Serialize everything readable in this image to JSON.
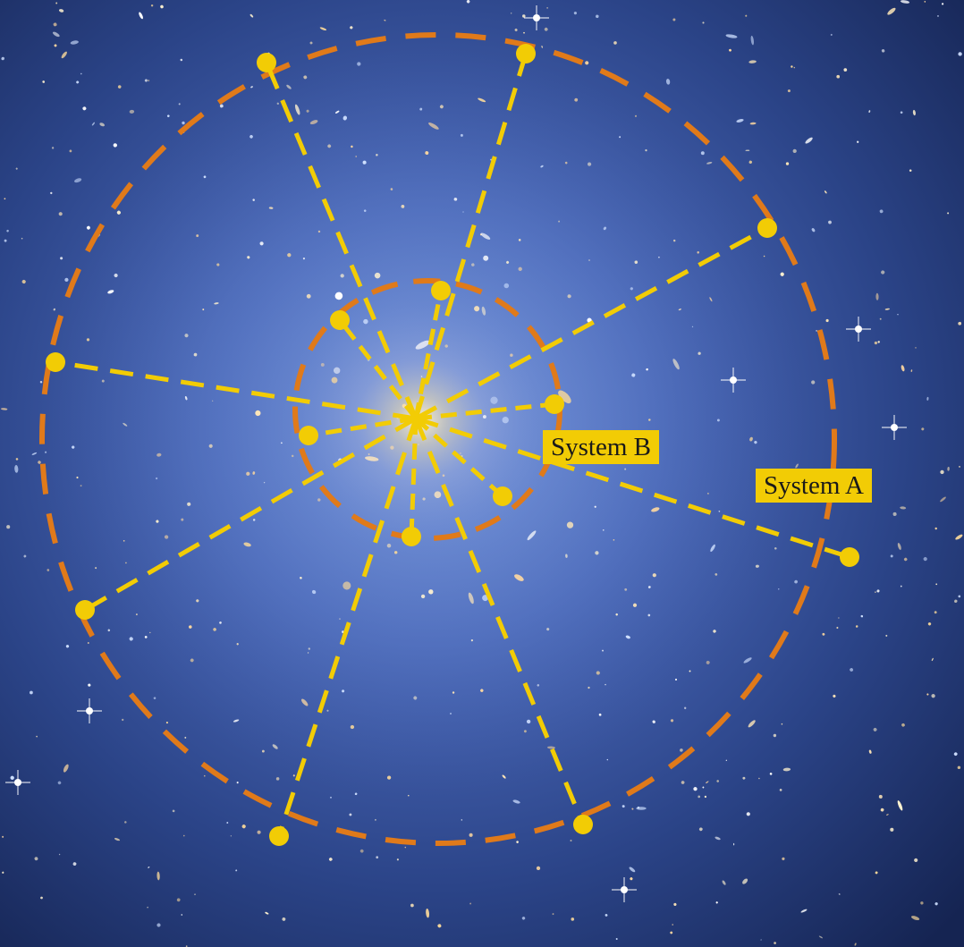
{
  "labels": {
    "system_b": "System B",
    "system_a": "System A"
  },
  "colors": {
    "sky_deep": "#1a2d64",
    "sky_glow": "#5b79c8",
    "cluster_core": "#f0e2b8",
    "outer_ring": "#e07a1a",
    "inner_ring": "#e07a1a",
    "spokes": "#f2cc05",
    "endpoints": "#f2cc05",
    "label_bg": "#f2cc05",
    "label_text": "#1a1a1a"
  },
  "icons": {
    "endpoint": "filled-circle-marker"
  }
}
